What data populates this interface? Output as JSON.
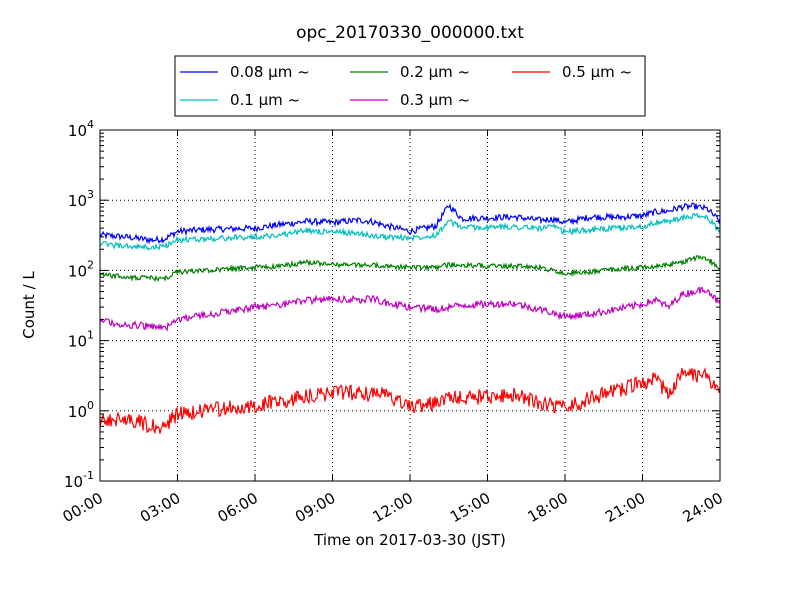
{
  "chart_data": {
    "type": "line",
    "title": "opc_20170330_000000.txt",
    "xlabel": "Time on 2017-03-30 (JST)",
    "ylabel": "Count / L",
    "yscale": "log",
    "ylim": [
      0.1,
      10000
    ],
    "xlim": [
      0,
      24
    ],
    "grid": true,
    "legend_position": "top-center",
    "x_tick_labels": [
      "00:00",
      "03:00",
      "06:00",
      "09:00",
      "12:00",
      "15:00",
      "18:00",
      "21:00",
      "24:00"
    ],
    "y_tick_labels": [
      {
        "base": "10",
        "exp": "-1"
      },
      {
        "base": "10",
        "exp": "0"
      },
      {
        "base": "10",
        "exp": "1"
      },
      {
        "base": "10",
        "exp": "2"
      },
      {
        "base": "10",
        "exp": "3"
      },
      {
        "base": "10",
        "exp": "4"
      }
    ],
    "x_hours": [
      0,
      1,
      2,
      2.5,
      3,
      4,
      5,
      6,
      7,
      8,
      9,
      10,
      10.5,
      11,
      12,
      13,
      13.5,
      14,
      15,
      16,
      17,
      17.5,
      18,
      19,
      20,
      21,
      21.5,
      22,
      22.5,
      23,
      23.5,
      24
    ],
    "series": [
      {
        "name": "0.08 μm ~",
        "color": "#0000ff",
        "values": [
          320,
          300,
          270,
          280,
          360,
          380,
          390,
          400,
          450,
          500,
          480,
          520,
          500,
          440,
          360,
          430,
          850,
          550,
          560,
          580,
          520,
          540,
          480,
          580,
          570,
          600,
          680,
          700,
          800,
          820,
          750,
          500
        ]
      },
      {
        "name": "0.1 μm ~",
        "color": "#00bfbf",
        "values": [
          240,
          220,
          210,
          220,
          270,
          280,
          290,
          300,
          320,
          370,
          350,
          340,
          310,
          300,
          290,
          320,
          500,
          410,
          410,
          420,
          400,
          420,
          350,
          380,
          400,
          420,
          480,
          500,
          550,
          600,
          560,
          370
        ]
      },
      {
        "name": "0.2 μm ~",
        "color": "#008000",
        "values": [
          88,
          80,
          78,
          75,
          95,
          100,
          105,
          110,
          115,
          130,
          120,
          120,
          118,
          115,
          110,
          110,
          120,
          118,
          115,
          115,
          110,
          100,
          90,
          95,
          105,
          110,
          115,
          120,
          130,
          150,
          150,
          105
        ]
      },
      {
        "name": "0.3 μm ~",
        "color": "#bf00bf",
        "values": [
          19,
          17,
          16,
          15,
          20,
          23,
          26,
          30,
          32,
          37,
          40,
          38,
          40,
          35,
          30,
          28,
          30,
          32,
          33,
          34,
          28,
          25,
          22,
          24,
          28,
          33,
          38,
          30,
          45,
          50,
          55,
          32
        ]
      },
      {
        "name": "0.5 μm ~",
        "color": "#ff0000",
        "values": [
          0.7,
          0.8,
          0.6,
          0.6,
          0.9,
          1.0,
          1.1,
          1.2,
          1.4,
          1.6,
          1.8,
          1.8,
          1.7,
          1.7,
          1.1,
          1.3,
          1.5,
          1.5,
          1.6,
          1.7,
          1.3,
          1.2,
          1.1,
          1.5,
          1.9,
          2.5,
          2.8,
          1.8,
          3.2,
          3.3,
          3.0,
          1.8
        ]
      }
    ]
  }
}
